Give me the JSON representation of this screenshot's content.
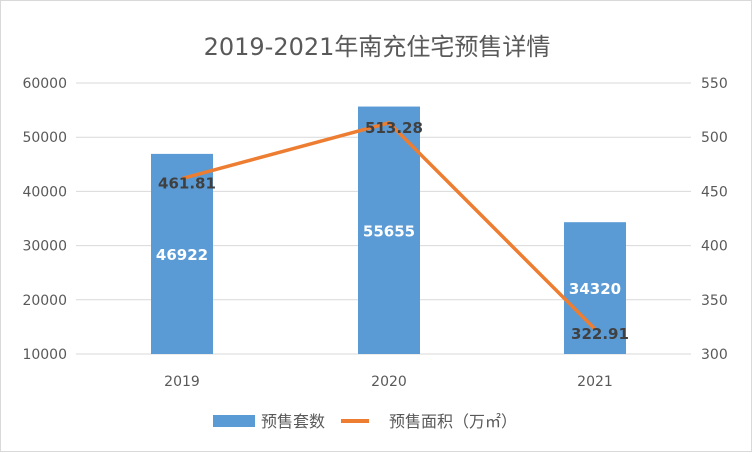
{
  "chart_data": {
    "type": "bar+line",
    "title": "2019-2021年南充住宅预售详情",
    "categories": [
      "2019",
      "2020",
      "2021"
    ],
    "series": [
      {
        "name": "预售套数",
        "type": "bar",
        "axis": "left",
        "values": [
          46922,
          55655,
          34320
        ],
        "labels": [
          "46922",
          "55655",
          "34320"
        ],
        "color": "#5b9bd5"
      },
      {
        "name": "预售面积（万㎡）",
        "type": "line",
        "axis": "right",
        "values": [
          461.81,
          513.28,
          322.91
        ],
        "labels": [
          "461.81",
          "513.28",
          "322.91"
        ],
        "color": "#ed7d31"
      }
    ],
    "y_left": {
      "range": [
        10000,
        60000
      ],
      "ticks": [
        "10000",
        "20000",
        "30000",
        "40000",
        "50000",
        "60000"
      ]
    },
    "y_right": {
      "range": [
        300,
        550
      ],
      "ticks": [
        "300",
        "350",
        "400",
        "450",
        "500",
        "550"
      ]
    },
    "grid": true,
    "legend": "bottom"
  }
}
